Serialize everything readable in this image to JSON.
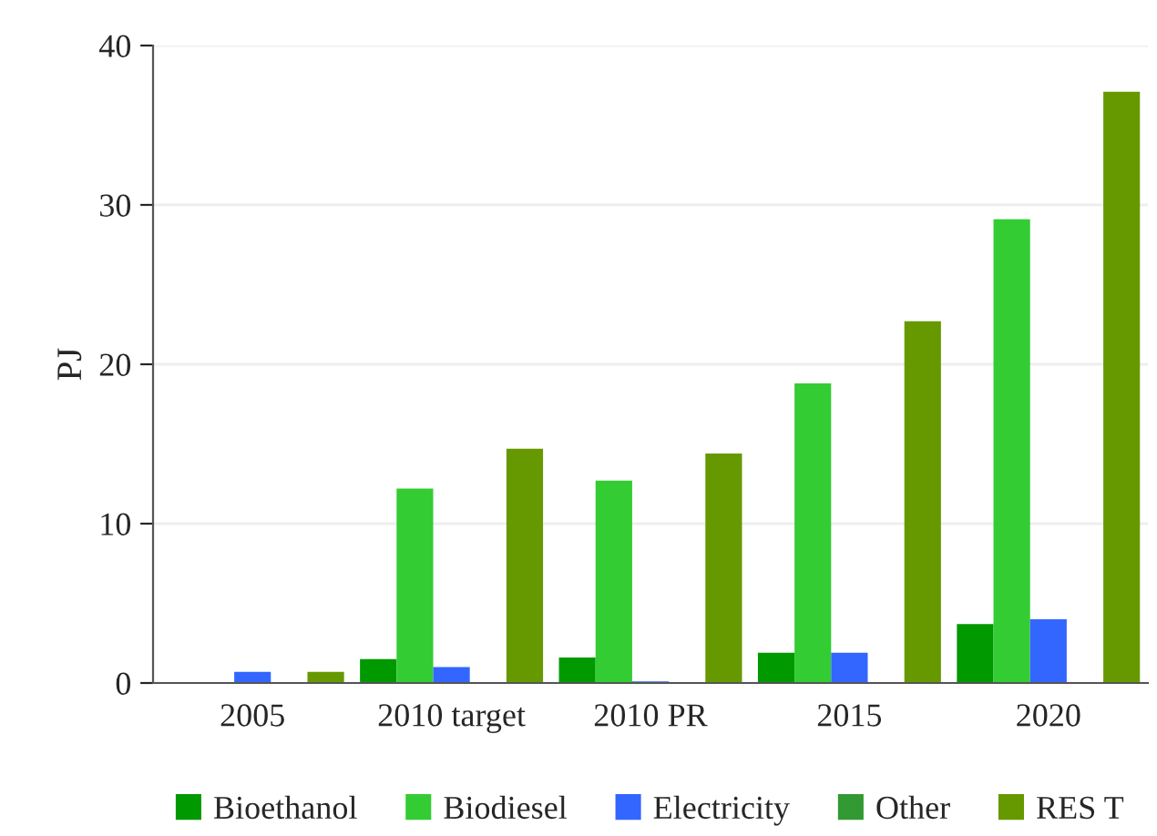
{
  "chart_data": {
    "type": "bar",
    "ylabel": "PJ",
    "categories": [
      "2005",
      "2010 target",
      "2010 PR",
      "2015",
      "2020"
    ],
    "series": [
      {
        "name": "Bioethanol",
        "color": "#009900",
        "values": [
          0,
          1.5,
          1.6,
          1.9,
          3.7
        ]
      },
      {
        "name": "Biodiesel",
        "color": "#33cc33",
        "values": [
          0,
          12.2,
          12.7,
          18.8,
          29.1
        ]
      },
      {
        "name": "Electricity",
        "color": "#3366ff",
        "values": [
          0.7,
          1.0,
          0.1,
          1.9,
          4.0
        ]
      },
      {
        "name": "Other",
        "color": "#339933",
        "values": [
          0,
          0,
          0,
          0,
          0
        ]
      },
      {
        "name": "RES T",
        "color": "#669900",
        "values": [
          0.7,
          14.7,
          14.4,
          22.7,
          37.1
        ]
      }
    ],
    "ylim": [
      0,
      40
    ],
    "yticks": [
      0,
      10,
      20,
      30,
      40
    ],
    "grid": "y",
    "legend": "bottom"
  }
}
